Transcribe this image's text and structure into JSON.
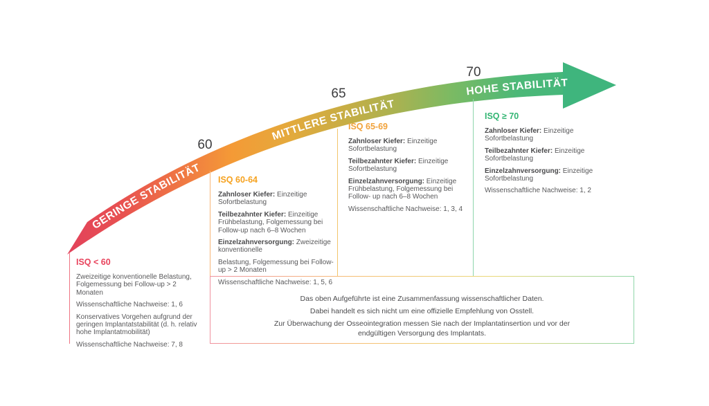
{
  "diagram": {
    "arrow": {
      "zone_labels": [
        "GERINGE STABILITÄT",
        "MITTLERE STABILITÄT",
        "HOHE STABILITÄT"
      ],
      "ticks": [
        "60",
        "65",
        "70"
      ],
      "gradient_colors": [
        "#e2425b",
        "#f07c42",
        "#f49a36",
        "#c9ad44",
        "#7bba63",
        "#3fb57d"
      ]
    },
    "columns": [
      {
        "header": "ISQ < 60",
        "header_color": "#e8435c",
        "line_color": "#ef7483",
        "paragraphs": [
          {
            "text": "Zweizeitige konventionelle Belastung, Folgemessung bei Follow-up > 2 Monaten"
          },
          {
            "text": "Wissenschaftliche Nachweise: 1, 6"
          },
          {
            "text": "Konservatives Vorgehen aufgrund der geringen Implantatstabilität (d. h. relativ hohe Implantatmobilität)"
          },
          {
            "text": "Wissenschaftliche Nachweise: 7, 8"
          }
        ]
      },
      {
        "header": "ISQ 60-64",
        "header_color": "#f6a21f",
        "line_color": "#f8b577",
        "paragraphs": [
          {
            "label": "Zahnloser Kiefer:",
            "text": "Einzeitige Sofortbelastung"
          },
          {
            "label": "Teilbezahnter Kiefer:",
            "text": "Einzeitige Frühbelastung, Folgemessung bei Follow-up nach 6–8 Wochen"
          },
          {
            "label": "Einzelzahnversorgung:",
            "text": "Zweizeitige konventionelle"
          },
          {
            "text": "Belastung, Folgemessung bei Follow-up > 2 Monaten"
          },
          {
            "text": "Wissenschaftliche Nachweise: 1, 5, 6"
          }
        ]
      },
      {
        "header": "ISQ 65-69",
        "header_color": "#f1a23b",
        "line_color": "#f2c46b",
        "paragraphs": [
          {
            "label": "Zahnloser Kiefer:",
            "text": "Einzeitige Sofortbelastung"
          },
          {
            "label": "Teilbezahnter Kiefer:",
            "text": "Einzeitige Sofortbelastung"
          },
          {
            "label": "Einzelzahnversorgung:",
            "text": "Einzeitige Frühbelastung, Folgemessung bei Follow- up nach 6–8 Wochen"
          },
          {
            "text": "Wissenschaftliche Nachweise: 1, 3, 4"
          }
        ]
      },
      {
        "header": "ISQ ≥ 70",
        "header_color": "#33b573",
        "line_color": "#8ed5ac",
        "paragraphs": [
          {
            "label": "Zahnloser Kiefer:",
            "text": "Einzeitige Sofortbelastung"
          },
          {
            "label": "Teilbezahnter Kiefer:",
            "text": "Einzeitige Sofortbelastung"
          },
          {
            "label": "Einzelzahnversorgung:",
            "text": "Einzeitige Sofortbelastung"
          },
          {
            "text": "Wissenschaftliche Nachweise: 1, 2"
          }
        ]
      }
    ],
    "footnote": {
      "lines": [
        "Das oben Aufgeführte ist eine Zusammenfassung wissenschaftlicher Daten.",
        "Dabei handelt es sich nicht um eine offizielle Empfehlung von Osstell.",
        "Zur Überwachung der Osseointegration messen Sie nach der Implantatinsertion und vor der endgültigen Versorgung des Implantats."
      ]
    }
  }
}
